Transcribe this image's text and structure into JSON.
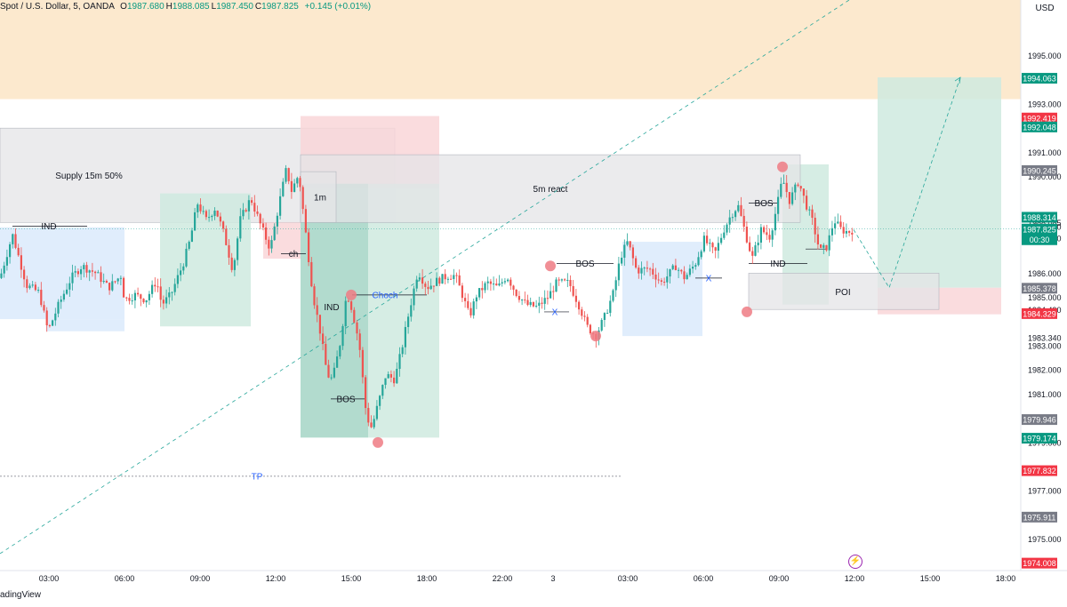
{
  "header": {
    "symbol_text": "Spot / U.S. Dollar, 5, OANDA",
    "ohlc": [
      {
        "label": "O",
        "value": "1987.680"
      },
      {
        "label": "H",
        "value": "1988.085"
      },
      {
        "label": "L",
        "value": "1987.450"
      },
      {
        "label": "C",
        "value": "1987.825"
      }
    ],
    "change": "+0.145 (+0.01%)"
  },
  "currency": "USD",
  "footer": {
    "brand": "adingView"
  },
  "colors": {
    "up": "#26a69a",
    "down": "#ef5350",
    "supply_zone": "#fce5c6",
    "demand_blue": "#dbeafb",
    "green_box": "#cfeadf",
    "red_box": "#f9d6d8",
    "gray_box": "#e4e4e7",
    "marker": "#ef7b84",
    "price_tag_green": "#089981",
    "price_tag_red": "#f23645",
    "price_tag_gray": "#787b86",
    "blue_label": "#2962ff",
    "event_icon": "#9c27b0"
  },
  "chart_data": {
    "type": "candlestick",
    "title": "",
    "xlabel": "",
    "ylabel": "",
    "ylim": [
      1973.7,
      1997.3
    ],
    "y_ticks": [
      "1995.000",
      "1993.000",
      "1991.000",
      "1990.000",
      "1988.085",
      "1987.930",
      "1987.450",
      "1986.000",
      "1985.000",
      "1984.490",
      "1983.340",
      "1983.000",
      "1982.000",
      "1981.000",
      "1979.000",
      "1977.000",
      "1975.000"
    ],
    "x_ticks": [
      "03:00",
      "06:00",
      "09:00",
      "12:00",
      "15:00",
      "18:00",
      "22:00",
      "3",
      "03:00",
      "06:00",
      "09:00",
      "12:00",
      "15:00",
      "18:00"
    ],
    "price_tags": [
      {
        "value": 1994.063,
        "label": "1994.063",
        "kind": "green"
      },
      {
        "value": 1992.419,
        "label": "1992.419",
        "kind": "red"
      },
      {
        "value": 1992.048,
        "label": "1992.048",
        "kind": "green"
      },
      {
        "value": 1990.245,
        "label": "1990.245",
        "kind": "gray"
      },
      {
        "value": 1988.314,
        "label": "1988.314",
        "kind": "green"
      },
      {
        "value": 1987.825,
        "label": "1987.825",
        "sub": "00:30",
        "kind": "green"
      },
      {
        "value": 1985.378,
        "label": "1985.378",
        "kind": "gray"
      },
      {
        "value": 1984.329,
        "label": "1984.329",
        "kind": "red"
      },
      {
        "value": 1979.946,
        "label": "1979.946",
        "kind": "gray"
      },
      {
        "value": 1979.174,
        "label": "1979.174",
        "kind": "green"
      },
      {
        "value": 1977.832,
        "label": "1977.832",
        "kind": "red"
      },
      {
        "value": 1975.911,
        "label": "1975.911",
        "kind": "gray"
      },
      {
        "value": 1974.008,
        "label": "1974.008",
        "kind": "red"
      }
    ],
    "price_path": [
      [
        0,
        1985.8
      ],
      [
        14,
        1987.6
      ],
      [
        30,
        1985.5
      ],
      [
        44,
        1985.2
      ],
      [
        54,
        1983.6
      ],
      [
        66,
        1984.7
      ],
      [
        80,
        1985.8
      ],
      [
        92,
        1986.3
      ],
      [
        108,
        1986.0
      ],
      [
        122,
        1985.4
      ],
      [
        136,
        1985.9
      ],
      [
        140,
        1984.9
      ],
      [
        152,
        1985.1
      ],
      [
        164,
        1984.9
      ],
      [
        176,
        1985.7
      ],
      [
        182,
        1984.7
      ],
      [
        192,
        1985.1
      ],
      [
        206,
        1986.4
      ],
      [
        214,
        1987.4
      ],
      [
        222,
        1988.9
      ],
      [
        232,
        1988.2
      ],
      [
        242,
        1988.7
      ],
      [
        252,
        1987.6
      ],
      [
        262,
        1986.1
      ],
      [
        270,
        1988.2
      ],
      [
        282,
        1989.1
      ],
      [
        294,
        1987.9
      ],
      [
        304,
        1987.0
      ],
      [
        314,
        1988.9
      ],
      [
        322,
        1990.3
      ],
      [
        328,
        1989.4
      ],
      [
        336,
        1990.1
      ],
      [
        344,
        1987.6
      ],
      [
        352,
        1985.1
      ],
      [
        360,
        1983.6
      ],
      [
        368,
        1981.8
      ],
      [
        374,
        1981.6
      ],
      [
        382,
        1983.0
      ],
      [
        390,
        1985.2
      ],
      [
        396,
        1984.5
      ],
      [
        404,
        1983.1
      ],
      [
        412,
        1980.1
      ],
      [
        418,
        1979.6
      ],
      [
        426,
        1980.7
      ],
      [
        434,
        1981.8
      ],
      [
        444,
        1981.6
      ],
      [
        452,
        1982.9
      ],
      [
        460,
        1984.4
      ],
      [
        470,
        1986.1
      ],
      [
        480,
        1985.4
      ],
      [
        492,
        1985.7
      ],
      [
        504,
        1985.9
      ],
      [
        512,
        1985.9
      ],
      [
        520,
        1985.1
      ],
      [
        528,
        1984.2
      ],
      [
        536,
        1985.1
      ],
      [
        548,
        1985.6
      ],
      [
        560,
        1985.4
      ],
      [
        570,
        1985.9
      ],
      [
        580,
        1985.2
      ],
      [
        592,
        1984.7
      ],
      [
        604,
        1984.6
      ],
      [
        616,
        1985.0
      ],
      [
        626,
        1985.6
      ],
      [
        640,
        1985.6
      ],
      [
        652,
        1984.6
      ],
      [
        660,
        1983.8
      ],
      [
        670,
        1983.4
      ],
      [
        680,
        1984.2
      ],
      [
        690,
        1985.2
      ],
      [
        698,
        1986.7
      ],
      [
        706,
        1987.3
      ],
      [
        716,
        1986.1
      ],
      [
        730,
        1986.2
      ],
      [
        744,
        1985.6
      ],
      [
        760,
        1986.3
      ],
      [
        770,
        1985.8
      ],
      [
        782,
        1986.4
      ],
      [
        792,
        1987.4
      ],
      [
        804,
        1986.8
      ],
      [
        814,
        1987.8
      ],
      [
        822,
        1988.4
      ],
      [
        830,
        1988.8
      ],
      [
        838,
        1987.7
      ],
      [
        846,
        1986.6
      ],
      [
        856,
        1987.8
      ],
      [
        866,
        1987.5
      ],
      [
        874,
        1988.8
      ],
      [
        880,
        1989.9
      ],
      [
        888,
        1989.0
      ],
      [
        898,
        1989.8
      ],
      [
        906,
        1988.9
      ],
      [
        914,
        1988.1
      ],
      [
        922,
        1986.9
      ],
      [
        930,
        1987.1
      ],
      [
        938,
        1988.2
      ],
      [
        946,
        1987.8
      ],
      [
        954,
        1987.7
      ],
      [
        960,
        1987.8
      ]
    ],
    "zones": [
      {
        "name": "supply-15m",
        "label": "Supply 15m 50%",
        "x0": 0,
        "x1": 444,
        "y0": 1992.0,
        "y1": 1988.1,
        "kind": "gray_box"
      },
      {
        "name": "supply-top",
        "label": "",
        "x0": 0,
        "x1": 1148,
        "y0": 1997.3,
        "y1": 1993.2,
        "kind": "supply_zone"
      },
      {
        "name": "demand-left",
        "label": "",
        "x0": 0,
        "x1": 140,
        "y0": 1987.9,
        "y1": 1984.1,
        "kind": "demand_blue"
      },
      {
        "name": "demand-left2",
        "label": "",
        "x0": 52,
        "x1": 140,
        "y0": 1984.1,
        "y1": 1983.6,
        "kind": "demand_blue"
      },
      {
        "name": "green-09",
        "label": "",
        "x0": 180,
        "x1": 282,
        "y0": 1989.3,
        "y1": 1983.8,
        "kind": "green_box"
      },
      {
        "name": "red-box",
        "label": "",
        "x0": 338,
        "x1": 494,
        "y0": 1992.5,
        "y1": 1989.5,
        "kind": "red_box"
      },
      {
        "name": "red-box-small",
        "label": "",
        "x0": 296,
        "x1": 338,
        "y0": 1988.1,
        "y1": 1986.6,
        "kind": "red_box"
      },
      {
        "name": "green-drop",
        "label": "",
        "x0": 338,
        "x1": 414,
        "y0": 1989.7,
        "y1": 1979.2,
        "kind": "up_box"
      },
      {
        "name": "green-rise",
        "label": "",
        "x0": 414,
        "x1": 494,
        "y0": 1989.7,
        "y1": 1979.2,
        "kind": "green_box"
      },
      {
        "name": "1m-box",
        "label": "1m",
        "x0": 338,
        "x1": 378,
        "y0": 1990.2,
        "y1": 1988.1,
        "kind": "gray_box"
      },
      {
        "name": "5m-react",
        "label": "5m react",
        "x0": 338,
        "x1": 900,
        "y0": 1990.9,
        "y1": 1988.1,
        "kind": "gray_box"
      },
      {
        "name": "demand-mid",
        "label": "",
        "x0": 700,
        "x1": 790,
        "y0": 1987.3,
        "y1": 1983.4,
        "kind": "demand_blue"
      },
      {
        "name": "green-right",
        "label": "",
        "x0": 880,
        "x1": 932,
        "y0": 1990.5,
        "y1": 1984.7,
        "kind": "green_box"
      },
      {
        "name": "poi",
        "label": "POI",
        "x0": 842,
        "x1": 1056,
        "y0": 1986.0,
        "y1": 1984.5,
        "kind": "gray_box"
      },
      {
        "name": "target-green",
        "label": "",
        "x0": 987,
        "x1": 1126,
        "y0": 1994.1,
        "y1": 1985.4,
        "kind": "green_box"
      },
      {
        "name": "stop-red",
        "label": "",
        "x0": 987,
        "x1": 1126,
        "y0": 1985.4,
        "y1": 1984.3,
        "kind": "red_box"
      }
    ],
    "labels": [
      {
        "text": "IND",
        "x": 55,
        "y": 1987.95,
        "kind": "dark"
      },
      {
        "text": "ch",
        "x": 330,
        "y": 1986.8,
        "kind": "dark"
      },
      {
        "text": "IND",
        "x": 373,
        "y": 1984.6,
        "kind": "dark"
      },
      {
        "text": "Choch",
        "x": 433,
        "y": 1985.1,
        "kind": "blue"
      },
      {
        "text": "BOS",
        "x": 389,
        "y": 1980.8,
        "kind": "dark"
      },
      {
        "text": "BOS",
        "x": 658,
        "y": 1986.4,
        "kind": "dark"
      },
      {
        "text": "X",
        "x": 624,
        "y": 1984.4,
        "kind": "blue"
      },
      {
        "text": "X",
        "x": 797,
        "y": 1985.8,
        "kind": "blue"
      },
      {
        "text": "BOS",
        "x": 859,
        "y": 1988.9,
        "kind": "dark"
      },
      {
        "text": "IND",
        "x": 875,
        "y": 1986.4,
        "kind": "dark"
      },
      {
        "text": "TP",
        "x": 289,
        "y": 1977.6,
        "kind": "blue"
      }
    ],
    "level_lines": [
      {
        "name": "ind-left",
        "x0": 14,
        "x1": 98,
        "y": 1987.95
      },
      {
        "name": "bos-mid",
        "x0": 626,
        "x1": 690,
        "y": 1986.4
      },
      {
        "name": "x-mid",
        "x0": 612,
        "x1": 640,
        "y": 1984.4
      },
      {
        "name": "x-right",
        "x0": 782,
        "x1": 812,
        "y": 1985.8
      },
      {
        "name": "bos-right",
        "x0": 842,
        "x1": 876,
        "y": 1988.9
      },
      {
        "name": "ind-right",
        "x0": 842,
        "x1": 908,
        "y": 1986.4
      },
      {
        "name": "ind-right2",
        "x0": 906,
        "x1": 930,
        "y": 1987.0
      },
      {
        "name": "bos-low",
        "x0": 372,
        "x1": 412,
        "y": 1980.8
      },
      {
        "name": "choch-line",
        "x0": 396,
        "x1": 480,
        "y": 1985.1
      },
      {
        "name": "ch-line",
        "x0": 316,
        "x1": 344,
        "y": 1986.8
      },
      {
        "name": "tp-line",
        "x0": 0,
        "x1": 700,
        "y": 1977.6
      }
    ],
    "markers": [
      {
        "x": 395,
        "y": 1985.1
      },
      {
        "x": 425,
        "y": 1979.0
      },
      {
        "x": 619,
        "y": 1986.3
      },
      {
        "x": 670,
        "y": 1983.4
      },
      {
        "x": 880,
        "y": 1990.4
      },
      {
        "x": 840,
        "y": 1984.4
      }
    ],
    "trend_line": {
      "x0": 0,
      "x1": 955,
      "y0": 1974.4,
      "y1": 1997.3
    },
    "projection": [
      [
        960,
        1987.8
      ],
      [
        1000,
        1985.4
      ],
      [
        1080,
        1994.1
      ]
    ],
    "current_price": 1987.825
  }
}
